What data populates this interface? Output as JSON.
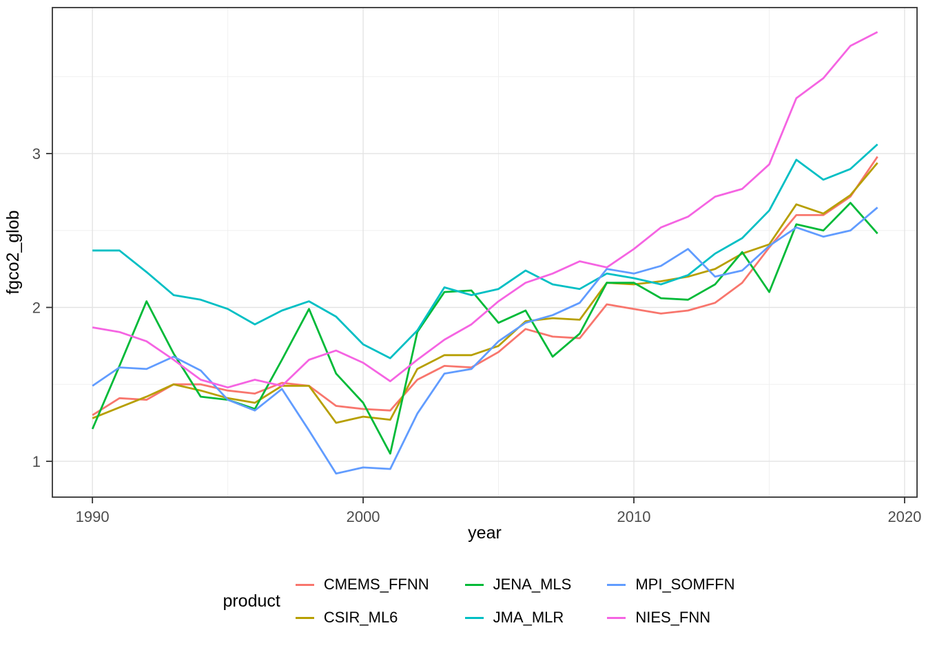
{
  "chart_data": {
    "type": "line",
    "title": "",
    "xlabel": "year",
    "ylabel": "fgco2_glob",
    "legend_title": "product",
    "legend_position": "bottom",
    "grid": "major+minor",
    "background": "#ffffff",
    "panel_border_color": "#333333",
    "major_grid_color": "#e3e3e3",
    "minor_grid_color": "#f0f0f0",
    "tick_text_color": "#4d4d4d",
    "x_range": [
      1988.52,
      2020.46
    ],
    "y_range": [
      0.767,
      3.949
    ],
    "x_major_ticks": [
      1990,
      2000,
      2010,
      2020
    ],
    "x_minor_ticks": [
      1995,
      2005,
      2015
    ],
    "y_major_ticks": [
      1,
      2,
      3
    ],
    "y_minor_ticks": [
      1.5,
      2.5,
      3.5
    ],
    "x": [
      1990,
      1991,
      1992,
      1993,
      1994,
      1995,
      1996,
      1997,
      1998,
      1999,
      2000,
      2001,
      2002,
      2003,
      2004,
      2005,
      2006,
      2007,
      2008,
      2009,
      2010,
      2011,
      2012,
      2013,
      2014,
      2015,
      2016,
      2017,
      2018,
      2019
    ],
    "series": [
      {
        "name": "CMEMS_FFNN",
        "color": "#F8766D",
        "values": [
          1.3,
          1.41,
          1.4,
          1.5,
          1.5,
          1.46,
          1.44,
          1.51,
          1.49,
          1.36,
          1.34,
          1.33,
          1.53,
          1.62,
          1.61,
          1.71,
          1.86,
          1.81,
          1.8,
          2.02,
          1.99,
          1.96,
          1.98,
          2.03,
          2.16,
          2.39,
          2.6,
          2.6,
          2.72,
          2.98
        ]
      },
      {
        "name": "CSIR_ML6",
        "color": "#B79F00",
        "values": [
          1.28,
          1.35,
          1.42,
          1.5,
          1.46,
          1.41,
          1.38,
          1.49,
          1.49,
          1.25,
          1.29,
          1.27,
          1.6,
          1.69,
          1.69,
          1.75,
          1.91,
          1.93,
          1.92,
          2.16,
          2.15,
          2.17,
          2.2,
          2.25,
          2.35,
          2.41,
          2.67,
          2.61,
          2.73,
          2.94
        ]
      },
      {
        "name": "JENA_MLS",
        "color": "#00BA38",
        "values": [
          1.21,
          1.62,
          2.04,
          1.7,
          1.42,
          1.4,
          1.34,
          1.66,
          1.99,
          1.57,
          1.38,
          1.05,
          1.84,
          2.1,
          2.11,
          1.9,
          1.98,
          1.68,
          1.83,
          2.16,
          2.16,
          2.06,
          2.05,
          2.15,
          2.36,
          2.1,
          2.54,
          2.5,
          2.68,
          2.48
        ]
      },
      {
        "name": "JMA_MLR",
        "color": "#00BFC4",
        "values": [
          2.37,
          2.37,
          2.23,
          2.08,
          2.05,
          1.99,
          1.89,
          1.98,
          2.04,
          1.94,
          1.76,
          1.67,
          1.85,
          2.13,
          2.08,
          2.12,
          2.24,
          2.15,
          2.12,
          2.22,
          2.19,
          2.15,
          2.21,
          2.35,
          2.45,
          2.63,
          2.96,
          2.83,
          2.9,
          3.06
        ]
      },
      {
        "name": "MPI_SOMFFN",
        "color": "#619CFF",
        "values": [
          1.49,
          1.61,
          1.6,
          1.68,
          1.59,
          1.4,
          1.33,
          1.47,
          1.2,
          0.92,
          0.96,
          0.95,
          1.31,
          1.57,
          1.6,
          1.78,
          1.9,
          1.95,
          2.03,
          2.25,
          2.22,
          2.27,
          2.38,
          2.2,
          2.24,
          2.4,
          2.52,
          2.46,
          2.5,
          2.65
        ]
      },
      {
        "name": "NIES_FNN",
        "color": "#F564E2",
        "values": [
          1.87,
          1.84,
          1.78,
          1.66,
          1.53,
          1.48,
          1.53,
          1.49,
          1.66,
          1.72,
          1.64,
          1.52,
          1.66,
          1.79,
          1.89,
          2.04,
          2.16,
          2.22,
          2.3,
          2.26,
          2.38,
          2.52,
          2.59,
          2.72,
          2.77,
          2.93,
          3.36,
          3.49,
          3.7,
          3.79
        ]
      }
    ],
    "legend_display_order": [
      0,
      2,
      4,
      1,
      3,
      5
    ]
  }
}
